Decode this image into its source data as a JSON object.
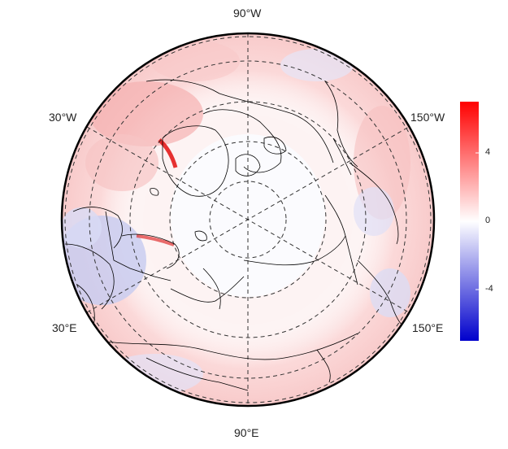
{
  "map": {
    "projection": "north-polar-stereographic",
    "longitude_labels": {
      "top": "90°W",
      "upper_left": "30°W",
      "upper_right": "150°W",
      "lower_left": "30°E",
      "lower_right": "150°E",
      "bottom": "90°E"
    },
    "graticule": {
      "style": "dashed",
      "latitude_circles": 5,
      "meridian_spokes": 6
    },
    "land_outline_color": "#000000"
  },
  "colorbar": {
    "colormap": "diverging blue-white-red",
    "min_color": "#0000cc",
    "mid_color": "#ffffff",
    "max_color": "#ff0000",
    "range": [
      -6,
      6
    ],
    "ticks": [
      {
        "value": 4,
        "label": "4"
      },
      {
        "value": 0,
        "label": "0"
      },
      {
        "value": -4,
        "label": "-4"
      }
    ]
  }
}
